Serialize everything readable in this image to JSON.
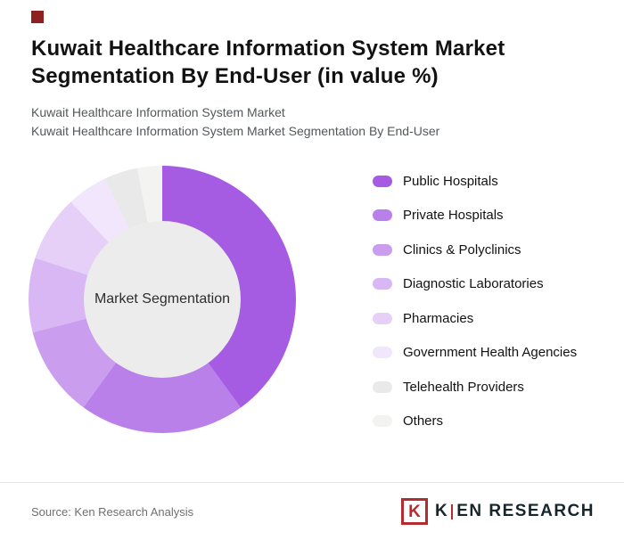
{
  "header": {
    "title": "Kuwait Healthcare Information System Market Segmentation By End-User (in value %)",
    "subtitle1": "Kuwait Healthcare Information System Market",
    "subtitle2": "Kuwait Healthcare Information System Market Segmentation By End-User"
  },
  "chart_data": {
    "type": "pie",
    "subtype": "donut",
    "title": "Kuwait Healthcare Information System Market Segmentation By End-User (in value %)",
    "center_label": "Market Segmentation",
    "unit": "value %",
    "legend_position": "right",
    "start_angle_deg": 0,
    "direction": "clockwise",
    "segments": [
      {
        "label": "Public Hospitals",
        "value": 40,
        "color": "#A55CE3"
      },
      {
        "label": "Private Hospitals",
        "value": 20,
        "color": "#BA80EA"
      },
      {
        "label": "Clinics & Polyclinics",
        "value": 11,
        "color": "#CB9DEF"
      },
      {
        "label": "Diagnostic Laboratories",
        "value": 9,
        "color": "#D9B7F4"
      },
      {
        "label": "Pharmacies",
        "value": 8,
        "color": "#E6D0F8"
      },
      {
        "label": "Government Health Agencies",
        "value": 5,
        "color": "#F1E6FC"
      },
      {
        "label": "Telehealth Providers",
        "value": 4,
        "color": "#E9E9E9"
      },
      {
        "label": "Others",
        "value": 3,
        "color": "#F3F3F1"
      }
    ]
  },
  "footer": {
    "source": "Source: Ken Research Analysis",
    "logo_first_letter": "K",
    "logo_rest": "EN RESEARCH",
    "logo_box_letter": "K"
  },
  "colors": {
    "accent": "#8E2020",
    "logo_red": "#B42B30",
    "donut_hole": "#ECECEC"
  }
}
